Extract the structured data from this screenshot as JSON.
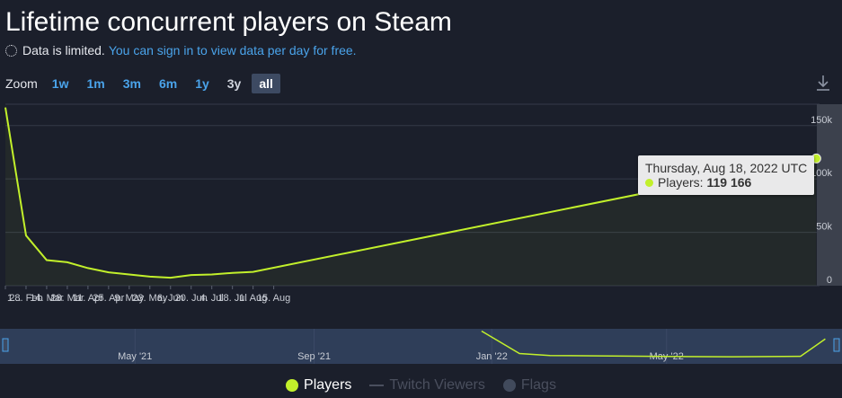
{
  "page": {
    "title": "Lifetime concurrent players on Steam",
    "limited_text": "Data is limited.",
    "limited_link": "You can sign in to view data per day for free."
  },
  "zoom": {
    "label": "Zoom",
    "buttons": [
      "1w",
      "1m",
      "3m",
      "6m",
      "1y",
      "3y",
      "all"
    ],
    "active": "all"
  },
  "icons": {
    "download": "download-icon",
    "limited": "dotted-circle-icon"
  },
  "colors": {
    "series": "#c2f02b",
    "grid": "#343a48",
    "axis_text": "#c8ccd4",
    "navigator_bg": "#2f3e59",
    "link": "#4aa3ea",
    "twitch": "#4a4f5e",
    "flags": "#414a5c"
  },
  "tooltip": {
    "date": "Thursday, Aug 18, 2022 UTC",
    "label": "Players:",
    "value": "119 166"
  },
  "legend": [
    {
      "name": "Players",
      "style": "dot",
      "color": "#c2f02b",
      "text_color": "#ffffff"
    },
    {
      "name": "Twitch Viewers",
      "style": "line",
      "color": "#4a4f5e",
      "text_color": "#4a4f5e"
    },
    {
      "name": "Flags",
      "style": "dot",
      "color": "#414a5c",
      "text_color": "#4a4f5e"
    }
  ],
  "chart_data": {
    "type": "line",
    "title": "Lifetime concurrent players on Steam",
    "ylim": [
      0,
      170000
    ],
    "y_ticks": [
      {
        "value": 0,
        "label": "0"
      },
      {
        "value": 50000,
        "label": "50k"
      },
      {
        "value": 100000,
        "label": "100k"
      },
      {
        "value": 150000,
        "label": "150k"
      }
    ],
    "xlim": [
      "2021-02-14",
      "2022-08-19"
    ],
    "x_ticks": [
      {
        "date": "2021-02-14",
        "label": "1..."
      },
      {
        "date": "2021-02-28",
        "label": "28. Feb"
      },
      {
        "date": "2021-03-14",
        "label": "14. Mar"
      },
      {
        "date": "2021-03-28",
        "label": "28. Mar"
      },
      {
        "date": "2021-04-11",
        "label": "11. Apr"
      },
      {
        "date": "2021-04-25",
        "label": "25. Apr"
      },
      {
        "date": "2021-05-09",
        "label": "9. May"
      },
      {
        "date": "2021-05-23",
        "label": "23. May"
      },
      {
        "date": "2021-06-06",
        "label": "6. Jun"
      },
      {
        "date": "2021-06-20",
        "label": "20. Jun"
      },
      {
        "date": "2021-07-04",
        "label": "4. Jul"
      },
      {
        "date": "2021-07-18",
        "label": "18. Jul"
      },
      {
        "date": "2021-08-01",
        "label": "1. Aug"
      },
      {
        "date": "2021-08-15",
        "label": "15. Aug"
      }
    ],
    "navigator_ticks": [
      {
        "date": "2021-05-01",
        "label": "May '21"
      },
      {
        "date": "2021-09-01",
        "label": "Sep '21"
      },
      {
        "date": "2022-01-01",
        "label": "Jan '22"
      },
      {
        "date": "2022-05-01",
        "label": "May '22"
      }
    ],
    "series": [
      {
        "name": "Players",
        "points": [
          [
            "2021-02-14",
            167000
          ],
          [
            "2021-02-28",
            47000
          ],
          [
            "2021-03-14",
            24000
          ],
          [
            "2021-03-28",
            22000
          ],
          [
            "2021-04-11",
            16500
          ],
          [
            "2021-04-25",
            12500
          ],
          [
            "2021-05-09",
            10500
          ],
          [
            "2021-05-23",
            8500
          ],
          [
            "2021-06-06",
            7500
          ],
          [
            "2021-06-20",
            10000
          ],
          [
            "2021-07-04",
            10500
          ],
          [
            "2021-07-18",
            12000
          ],
          [
            "2021-08-01",
            13000
          ],
          [
            "2022-08-18",
            119166
          ]
        ]
      }
    ],
    "navigator": {
      "xlim": [
        "2021-02-01",
        "2022-08-19"
      ],
      "points": [
        [
          "2021-12-25",
          167000
        ],
        [
          "2022-01-20",
          30000
        ],
        [
          "2022-02-10",
          18000
        ],
        [
          "2022-03-15",
          16000
        ],
        [
          "2022-05-01",
          12000
        ],
        [
          "2022-06-15",
          10500
        ],
        [
          "2022-08-01",
          13000
        ],
        [
          "2022-08-18",
          119166
        ]
      ]
    }
  }
}
